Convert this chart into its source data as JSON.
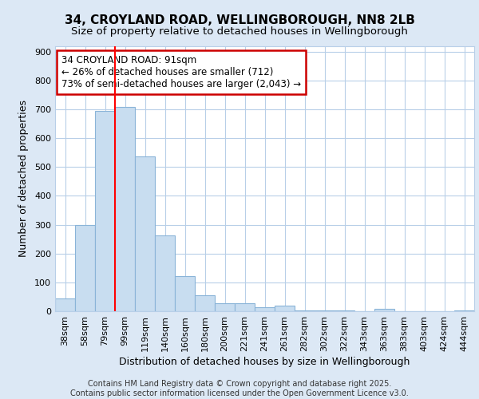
{
  "title1": "34, CROYLAND ROAD, WELLINGBOROUGH, NN8 2LB",
  "title2": "Size of property relative to detached houses in Wellingborough",
  "xlabel": "Distribution of detached houses by size in Wellingborough",
  "ylabel": "Number of detached properties",
  "categories": [
    "38sqm",
    "58sqm",
    "79sqm",
    "99sqm",
    "119sqm",
    "140sqm",
    "160sqm",
    "180sqm",
    "200sqm",
    "221sqm",
    "241sqm",
    "261sqm",
    "282sqm",
    "302sqm",
    "322sqm",
    "343sqm",
    "363sqm",
    "383sqm",
    "403sqm",
    "424sqm",
    "444sqm"
  ],
  "values": [
    45,
    300,
    695,
    707,
    537,
    263,
    123,
    54,
    28,
    28,
    15,
    18,
    3,
    3,
    2,
    1,
    8,
    1,
    1,
    0,
    3
  ],
  "bar_color": "#c8ddf0",
  "bar_edgecolor": "#8ab4d8",
  "vline_color": "red",
  "vline_pos": 2.5,
  "ylim": [
    0,
    920
  ],
  "yticks": [
    0,
    100,
    200,
    300,
    400,
    500,
    600,
    700,
    800,
    900
  ],
  "annotation_text": "34 CROYLAND ROAD: 91sqm\n← 26% of detached houses are smaller (712)\n73% of semi-detached houses are larger (2,043) →",
  "annotation_box_color": "white",
  "annotation_box_edgecolor": "#cc0000",
  "footer_text": "Contains HM Land Registry data © Crown copyright and database right 2025.\nContains public sector information licensed under the Open Government Licence v3.0.",
  "background_color": "#dce8f5",
  "plot_bg_color": "white",
  "grid_color": "#b8cfe8",
  "title1_fontsize": 11,
  "title2_fontsize": 9.5,
  "xlabel_fontsize": 9,
  "ylabel_fontsize": 9,
  "tick_fontsize": 8,
  "annotation_fontsize": 8.5,
  "footer_fontsize": 7
}
